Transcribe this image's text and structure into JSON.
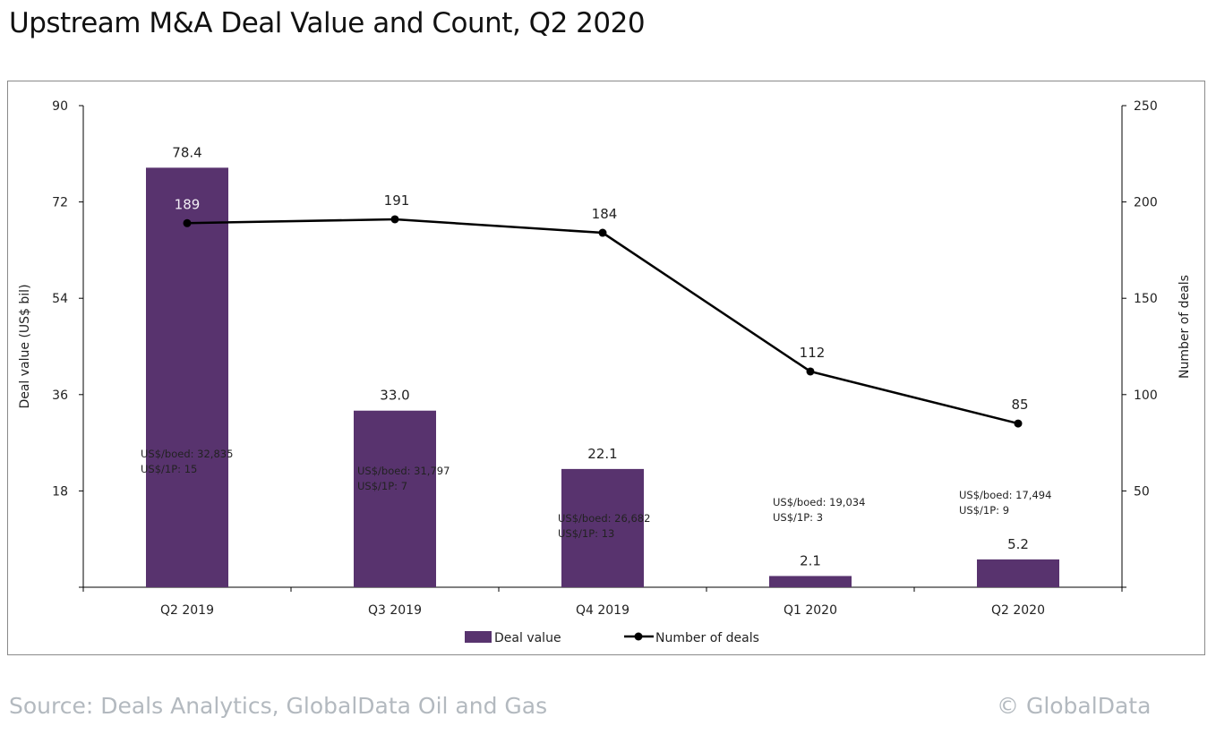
{
  "title": "Upstream M&A Deal Value and Count, Q2 2020",
  "footer": {
    "source": "Source: Deals Analytics, GlobalData Oil and Gas",
    "copyright": "© GlobalData"
  },
  "colors": {
    "bar": "#58336e",
    "line": "#000000"
  },
  "chart_data": {
    "type": "bar+line",
    "categories": [
      "Q2 2019",
      "Q3 2019",
      "Q4 2019",
      "Q1 2020",
      "Q2 2020"
    ],
    "series": [
      {
        "name": "Deal value",
        "type": "bar",
        "axis": "left",
        "values": [
          78.4,
          33.0,
          22.1,
          2.1,
          5.2
        ],
        "labels": [
          "78.4",
          "33.0",
          "22.1",
          "2.1",
          "5.2"
        ]
      },
      {
        "name": "Number of deals",
        "type": "line",
        "axis": "right",
        "values": [
          189,
          191,
          184,
          112,
          85
        ],
        "labels": [
          "189",
          "191",
          "184",
          "112",
          "85"
        ]
      }
    ],
    "annotations": [
      [
        "US$/boed: 32,835",
        "US$/1P: 15"
      ],
      [
        "US$/boed: 31,797",
        "US$/1P: 7"
      ],
      [
        "US$/boed: 26,682",
        "US$/1P: 13"
      ],
      [
        "US$/boed: 19,034",
        "US$/1P: 3"
      ],
      [
        "US$/boed: 17,494",
        "US$/1P: 9"
      ]
    ],
    "ylabel": "Deal value (US$ bil)",
    "y2label": "Number of deals",
    "ylim": [
      0,
      90
    ],
    "y2lim": [
      0,
      250
    ],
    "yticks": [
      "90",
      "72",
      "54",
      "36",
      "18"
    ],
    "y2ticks": [
      "250",
      "200",
      "150",
      "100",
      "50"
    ],
    "grid": false,
    "legend": "bottom"
  }
}
